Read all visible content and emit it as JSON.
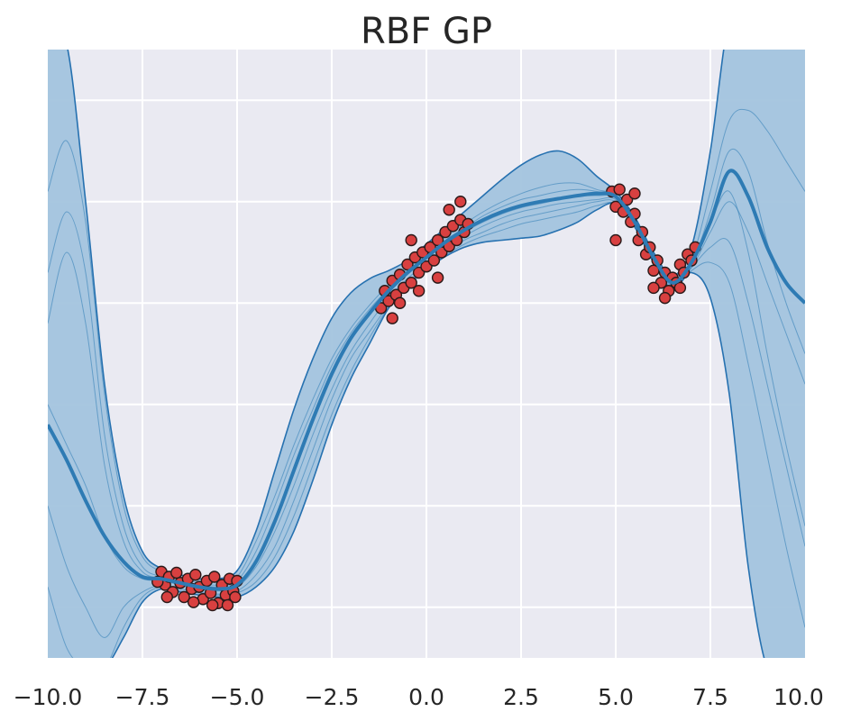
{
  "chart_data": {
    "type": "line",
    "title": "RBF GP",
    "xlabel": "",
    "ylabel": "",
    "xlim": [
      -10,
      10
    ],
    "ylim": [
      -3.5,
      2.5
    ],
    "xticks": [
      -10,
      -7.5,
      -5,
      -2.5,
      0,
      2.5,
      5,
      7.5,
      10
    ],
    "xtick_labels": [
      "−10.0",
      "−7.5",
      "−5.0",
      "−2.5",
      "0.0",
      "2.5",
      "5.0",
      "7.5",
      "10.0"
    ],
    "yticks": [
      -3,
      -2,
      -1,
      0,
      1,
      2
    ],
    "ytick_labels_visible": false,
    "grid": true,
    "legend": "none",
    "colors": {
      "background": "#eaeaf2",
      "grid": "#ffffff",
      "band": "#a3c4de",
      "mean": "#2e7bb4",
      "band_edge": "#2671b0",
      "points": "#d84040",
      "point_edge": "#2a1a1a"
    },
    "series": [
      {
        "role": "mean",
        "x": [
          -10,
          -9.5,
          -9,
          -8.5,
          -8,
          -7.5,
          -7,
          -6.5,
          -6,
          -5.5,
          -5,
          -4.5,
          -4,
          -3.5,
          -3,
          -2.5,
          -2,
          -1.5,
          -1,
          -0.5,
          0,
          0.5,
          1,
          1.5,
          2,
          2.5,
          3,
          3.5,
          4,
          4.5,
          5,
          5.5,
          6,
          6.5,
          7,
          7.5,
          8,
          8.5,
          9,
          9.5,
          10
        ],
        "y": [
          -1.2,
          -1.55,
          -1.95,
          -2.3,
          -2.55,
          -2.7,
          -2.72,
          -2.76,
          -2.8,
          -2.82,
          -2.78,
          -2.55,
          -2.15,
          -1.65,
          -1.15,
          -0.7,
          -0.35,
          -0.1,
          0.12,
          0.3,
          0.45,
          0.6,
          0.72,
          0.82,
          0.9,
          0.96,
          1.0,
          1.03,
          1.06,
          1.08,
          1.05,
          0.8,
          0.45,
          0.2,
          0.4,
          0.8,
          1.3,
          1.05,
          0.55,
          0.2,
          0.0
        ]
      },
      {
        "role": "upper",
        "x": [
          -10,
          -9.5,
          -9,
          -8.5,
          -8,
          -7.5,
          -7,
          -6.5,
          -6,
          -5.5,
          -5,
          -4.5,
          -4,
          -3.5,
          -3,
          -2.5,
          -2,
          -1.5,
          -1,
          -0.5,
          0,
          0.5,
          1,
          1.5,
          2,
          2.5,
          3,
          3.5,
          4,
          4.5,
          5,
          5.5,
          6,
          6.5,
          7,
          7.5,
          8,
          8.5,
          9,
          9.5,
          10
        ],
        "y": [
          2.6,
          2.55,
          1.0,
          -0.8,
          -1.9,
          -2.45,
          -2.62,
          -2.68,
          -2.72,
          -2.72,
          -2.64,
          -2.25,
          -1.65,
          -1.05,
          -0.55,
          -0.15,
          0.1,
          0.24,
          0.32,
          0.42,
          0.58,
          0.74,
          0.9,
          1.06,
          1.22,
          1.36,
          1.46,
          1.5,
          1.42,
          1.25,
          1.1,
          0.85,
          0.5,
          0.27,
          0.55,
          1.5,
          2.8,
          2.8,
          2.8,
          2.8,
          2.8
        ]
      },
      {
        "role": "lower",
        "x": [
          -10,
          -9.5,
          -9,
          -8.5,
          -8,
          -7.5,
          -7,
          -6.5,
          -6,
          -5.5,
          -5,
          -4.5,
          -4,
          -3.5,
          -3,
          -2.5,
          -2,
          -1.5,
          -1,
          -0.5,
          0,
          0.5,
          1,
          1.5,
          2,
          2.5,
          3,
          3.5,
          4,
          4.5,
          5,
          5.5,
          6,
          6.5,
          7,
          7.5,
          8,
          8.5,
          9,
          9.5,
          10
        ],
        "y": [
          -3.6,
          -3.6,
          -3.6,
          -3.6,
          -3.3,
          -2.95,
          -2.82,
          -2.85,
          -2.88,
          -2.9,
          -2.9,
          -2.8,
          -2.6,
          -2.25,
          -1.75,
          -1.2,
          -0.75,
          -0.4,
          -0.05,
          0.18,
          0.33,
          0.46,
          0.55,
          0.6,
          0.62,
          0.64,
          0.66,
          0.72,
          0.8,
          0.92,
          0.98,
          0.75,
          0.4,
          0.13,
          0.3,
          0.05,
          -0.9,
          -2.6,
          -3.6,
          -3.6,
          -3.6
        ]
      }
    ],
    "samples_x": [
      -10,
      -9.5,
      -9,
      -8.5,
      -8,
      -7.5,
      -7,
      -6.5,
      -6,
      -5.5,
      -5,
      -4.5,
      -4,
      -3.5,
      -3,
      -2.5,
      -2,
      -1.5,
      -1,
      -0.5,
      0,
      0.5,
      1,
      1.5,
      2,
      2.5,
      3,
      3.5,
      4,
      4.5,
      5,
      5.5,
      6,
      6.5,
      7,
      7.5,
      8,
      8.5,
      9,
      9.5,
      10
    ],
    "samples": [
      [
        1.1,
        1.6,
        0.8,
        -0.9,
        -2.0,
        -2.5,
        -2.65,
        -2.72,
        -2.76,
        -2.78,
        -2.7,
        -2.35,
        -1.9,
        -1.4,
        -0.95,
        -0.55,
        -0.25,
        -0.02,
        0.18,
        0.34,
        0.5,
        0.65,
        0.78,
        0.9,
        1.0,
        1.08,
        1.14,
        1.18,
        1.18,
        1.12,
        1.06,
        0.82,
        0.46,
        0.2,
        0.42,
        1.1,
        1.8,
        1.9,
        1.7,
        1.4,
        1.1
      ],
      [
        0.3,
        0.9,
        0.3,
        -1.3,
        -2.2,
        -2.6,
        -2.7,
        -2.75,
        -2.78,
        -2.8,
        -2.74,
        -2.45,
        -2.0,
        -1.5,
        -1.05,
        -0.62,
        -0.3,
        -0.06,
        0.14,
        0.3,
        0.46,
        0.62,
        0.74,
        0.86,
        0.95,
        1.02,
        1.06,
        1.1,
        1.12,
        1.1,
        1.05,
        0.8,
        0.44,
        0.2,
        0.38,
        0.9,
        1.5,
        1.3,
        0.6,
        0.0,
        -0.5
      ],
      [
        -0.2,
        0.5,
        -0.2,
        -1.6,
        -2.35,
        -2.65,
        -2.72,
        -2.78,
        -2.8,
        -2.82,
        -2.78,
        -2.55,
        -2.15,
        -1.65,
        -1.15,
        -0.72,
        -0.36,
        -0.12,
        0.1,
        0.28,
        0.44,
        0.58,
        0.7,
        0.8,
        0.88,
        0.94,
        0.98,
        1.02,
        1.05,
        1.06,
        1.04,
        0.8,
        0.45,
        0.2,
        0.35,
        0.7,
        1.0,
        0.7,
        0.2,
        -0.3,
        -0.8
      ],
      [
        -1.0,
        -1.4,
        -1.8,
        -2.3,
        -2.6,
        -2.72,
        -2.74,
        -2.78,
        -2.82,
        -2.84,
        -2.8,
        -2.6,
        -2.25,
        -1.8,
        -1.3,
        -0.85,
        -0.48,
        -0.2,
        0.05,
        0.24,
        0.4,
        0.55,
        0.66,
        0.76,
        0.84,
        0.9,
        0.94,
        0.98,
        1.0,
        1.02,
        1.02,
        0.78,
        0.44,
        0.19,
        0.4,
        0.8,
        1.1,
        0.5,
        -0.5,
        -1.4,
        -2.2
      ],
      [
        -2.0,
        -2.6,
        -3.0,
        -3.3,
        -3.0,
        -2.85,
        -2.78,
        -2.82,
        -2.85,
        -2.87,
        -2.84,
        -2.68,
        -2.4,
        -1.95,
        -1.45,
        -0.95,
        -0.55,
        -0.28,
        -0.02,
        0.2,
        0.36,
        0.5,
        0.62,
        0.7,
        0.78,
        0.84,
        0.88,
        0.92,
        0.96,
        1.0,
        1.0,
        0.76,
        0.42,
        0.17,
        0.35,
        0.55,
        0.6,
        0.0,
        -0.8,
        -1.6,
        -2.4
      ],
      [
        -2.8,
        -3.4,
        -3.6,
        -3.6,
        -3.2,
        -2.9,
        -2.8,
        -2.84,
        -2.86,
        -2.88,
        -2.86,
        -2.75,
        -2.5,
        -2.1,
        -1.6,
        -1.1,
        -0.68,
        -0.34,
        -0.04,
        0.16,
        0.32,
        0.47,
        0.58,
        0.66,
        0.72,
        0.78,
        0.82,
        0.86,
        0.9,
        0.96,
        0.98,
        0.75,
        0.41,
        0.15,
        0.32,
        0.4,
        0.2,
        -0.6,
        -1.5,
        -2.4,
        -3.2
      ]
    ],
    "points": [
      {
        "x": -7.0,
        "y": -2.65
      },
      {
        "x": -6.9,
        "y": -2.78
      },
      {
        "x": -6.8,
        "y": -2.7
      },
      {
        "x": -6.7,
        "y": -2.85
      },
      {
        "x": -6.6,
        "y": -2.66
      },
      {
        "x": -6.5,
        "y": -2.76
      },
      {
        "x": -6.4,
        "y": -2.9
      },
      {
        "x": -6.3,
        "y": -2.72
      },
      {
        "x": -6.2,
        "y": -2.82
      },
      {
        "x": -6.1,
        "y": -2.68
      },
      {
        "x": -6.0,
        "y": -2.8
      },
      {
        "x": -5.9,
        "y": -2.92
      },
      {
        "x": -5.8,
        "y": -2.74
      },
      {
        "x": -5.7,
        "y": -2.86
      },
      {
        "x": -5.6,
        "y": -2.7
      },
      {
        "x": -5.5,
        "y": -2.96
      },
      {
        "x": -5.4,
        "y": -2.78
      },
      {
        "x": -5.3,
        "y": -2.88
      },
      {
        "x": -5.2,
        "y": -2.72
      },
      {
        "x": -5.1,
        "y": -2.84
      },
      {
        "x": -5.0,
        "y": -2.74
      },
      {
        "x": -7.1,
        "y": -2.75
      },
      {
        "x": -6.85,
        "y": -2.9
      },
      {
        "x": -6.15,
        "y": -2.95
      },
      {
        "x": -5.65,
        "y": -2.98
      },
      {
        "x": -5.25,
        "y": -2.98
      },
      {
        "x": -5.05,
        "y": -2.9
      },
      {
        "x": -1.2,
        "y": -0.05
      },
      {
        "x": -1.1,
        "y": 0.12
      },
      {
        "x": -1.0,
        "y": 0.02
      },
      {
        "x": -0.9,
        "y": 0.22
      },
      {
        "x": -0.8,
        "y": 0.08
      },
      {
        "x": -0.7,
        "y": 0.28
      },
      {
        "x": -0.6,
        "y": 0.15
      },
      {
        "x": -0.5,
        "y": 0.38
      },
      {
        "x": -0.4,
        "y": 0.2
      },
      {
        "x": -0.3,
        "y": 0.45
      },
      {
        "x": -0.2,
        "y": 0.3
      },
      {
        "x": -0.1,
        "y": 0.5
      },
      {
        "x": 0.0,
        "y": 0.36
      },
      {
        "x": 0.1,
        "y": 0.55
      },
      {
        "x": 0.2,
        "y": 0.42
      },
      {
        "x": 0.3,
        "y": 0.62
      },
      {
        "x": 0.4,
        "y": 0.5
      },
      {
        "x": 0.5,
        "y": 0.7
      },
      {
        "x": 0.6,
        "y": 0.56
      },
      {
        "x": 0.7,
        "y": 0.76
      },
      {
        "x": 0.8,
        "y": 0.62
      },
      {
        "x": 0.9,
        "y": 0.82
      },
      {
        "x": 1.0,
        "y": 0.7
      },
      {
        "x": 1.1,
        "y": 0.78
      },
      {
        "x": -0.9,
        "y": -0.15
      },
      {
        "x": -0.7,
        "y": 0.0
      },
      {
        "x": -0.2,
        "y": 0.12
      },
      {
        "x": 0.3,
        "y": 0.25
      },
      {
        "x": 0.6,
        "y": 0.92
      },
      {
        "x": 0.9,
        "y": 1.0
      },
      {
        "x": -0.4,
        "y": 0.62
      },
      {
        "x": 4.9,
        "y": 1.1
      },
      {
        "x": 5.0,
        "y": 0.95
      },
      {
        "x": 5.1,
        "y": 1.12
      },
      {
        "x": 5.2,
        "y": 0.9
      },
      {
        "x": 5.3,
        "y": 1.02
      },
      {
        "x": 5.4,
        "y": 0.8
      },
      {
        "x": 5.5,
        "y": 0.88
      },
      {
        "x": 5.6,
        "y": 0.62
      },
      {
        "x": 5.7,
        "y": 0.7
      },
      {
        "x": 5.8,
        "y": 0.48
      },
      {
        "x": 5.9,
        "y": 0.55
      },
      {
        "x": 6.0,
        "y": 0.32
      },
      {
        "x": 6.1,
        "y": 0.42
      },
      {
        "x": 6.2,
        "y": 0.2
      },
      {
        "x": 6.3,
        "y": 0.3
      },
      {
        "x": 6.4,
        "y": 0.12
      },
      {
        "x": 6.5,
        "y": 0.25
      },
      {
        "x": 6.6,
        "y": 0.2
      },
      {
        "x": 6.7,
        "y": 0.38
      },
      {
        "x": 6.8,
        "y": 0.3
      },
      {
        "x": 6.9,
        "y": 0.48
      },
      {
        "x": 7.0,
        "y": 0.42
      },
      {
        "x": 7.1,
        "y": 0.55
      },
      {
        "x": 5.0,
        "y": 0.62
      },
      {
        "x": 5.5,
        "y": 1.08
      },
      {
        "x": 6.0,
        "y": 0.15
      },
      {
        "x": 6.3,
        "y": 0.05
      },
      {
        "x": 6.7,
        "y": 0.15
      }
    ]
  }
}
